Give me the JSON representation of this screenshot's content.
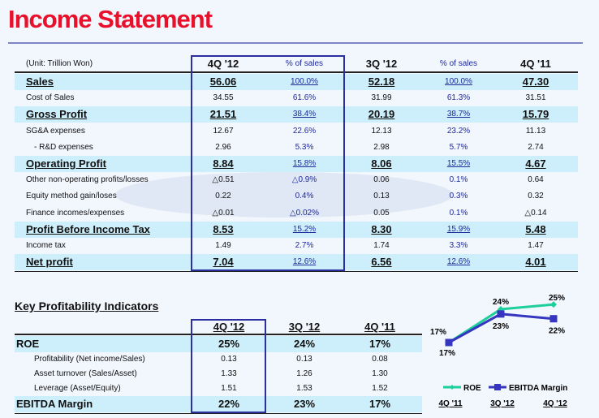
{
  "title": "Income Statement",
  "watermark": "SAMSUNG",
  "income": {
    "unit": "(Unit: Trillion Won)",
    "columns": [
      "4Q '12",
      "% of sales",
      "3Q '12",
      "% of sales",
      "4Q '11"
    ],
    "rows": [
      {
        "label": "Sales",
        "bold": true,
        "v": [
          "56.06",
          "100.0%",
          "52.18",
          "100.0%",
          "47.30"
        ]
      },
      {
        "label": "Cost of Sales",
        "v": [
          "34.55",
          "61.6%",
          "31.99",
          "61.3%",
          "31.51"
        ]
      },
      {
        "label": "Gross Profit",
        "bold": true,
        "v": [
          "21.51",
          "38.4%",
          "20.19",
          "38.7%",
          "15.79"
        ]
      },
      {
        "label": "SG&A expenses",
        "v": [
          "12.67",
          "22.6%",
          "12.13",
          "23.2%",
          "11.13"
        ]
      },
      {
        "label": "- R&D expenses",
        "sub": true,
        "v": [
          "2.96",
          "5.3%",
          "2.98",
          "5.7%",
          "2.74"
        ]
      },
      {
        "label": "Operating Profit",
        "bold": true,
        "v": [
          "8.84",
          "15.8%",
          "8.06",
          "15.5%",
          "4.67"
        ]
      },
      {
        "label": "Other non-operating profits/losses",
        "v": [
          "△0.51",
          "△0.9%",
          "0.06",
          "0.1%",
          "0.64"
        ]
      },
      {
        "label": "Equity method gain/loses",
        "v": [
          "0.22",
          "0.4%",
          "0.13",
          "0.3%",
          "0.32"
        ]
      },
      {
        "label": "Finance incomes/expenses",
        "v": [
          "△0.01",
          "△0.02%",
          "0.05",
          "0.1%",
          "△0.14"
        ]
      },
      {
        "label": "Profit Before Income Tax",
        "bold": true,
        "v": [
          "8.53",
          "15.2%",
          "8.30",
          "15.9%",
          "5.48"
        ]
      },
      {
        "label": "Income tax",
        "v": [
          "1.49",
          "2.7%",
          "1.74",
          "3.3%",
          "1.47"
        ]
      },
      {
        "label": "Net profit",
        "bold": true,
        "v": [
          "7.04",
          "12.6%",
          "6.56",
          "12.6%",
          "4.01"
        ]
      }
    ]
  },
  "kpi": {
    "title": "Key Profitability Indicators",
    "columns": [
      "4Q '12",
      "3Q '12",
      "4Q '11"
    ],
    "rows": [
      {
        "label": "ROE",
        "bold": true,
        "v": [
          "25%",
          "24%",
          "17%"
        ]
      },
      {
        "label": "Profitability (Net income/Sales)",
        "sub": true,
        "v": [
          "0.13",
          "0.13",
          "0.08"
        ]
      },
      {
        "label": "Asset turnover (Sales/Asset)",
        "sub": true,
        "v": [
          "1.33",
          "1.26",
          "1.30"
        ]
      },
      {
        "label": "Leverage (Asset/Equity)",
        "sub": true,
        "v": [
          "1.51",
          "1.53",
          "1.52"
        ]
      },
      {
        "label": "EBITDA Margin",
        "bold": true,
        "v": [
          "22%",
          "23%",
          "17%"
        ]
      }
    ]
  },
  "chart_data": {
    "type": "line",
    "categories": [
      "4Q '11",
      "3Q '12",
      "4Q '12"
    ],
    "series": [
      {
        "name": "ROE",
        "values": [
          17,
          24,
          25
        ],
        "labels": [
          "17%",
          "24%",
          "25%"
        ],
        "color": "#1dcf9a",
        "marker": "diamond"
      },
      {
        "name": "EBITDA Margin",
        "values": [
          17,
          23,
          22
        ],
        "labels": [
          "17%",
          "23%",
          "22%"
        ],
        "color": "#3535c0",
        "marker": "square"
      }
    ],
    "legend": "bottom"
  },
  "colors": {
    "title": "#e8102a",
    "highlight_row": "#cdeefb",
    "box": "#2b2fa0"
  }
}
